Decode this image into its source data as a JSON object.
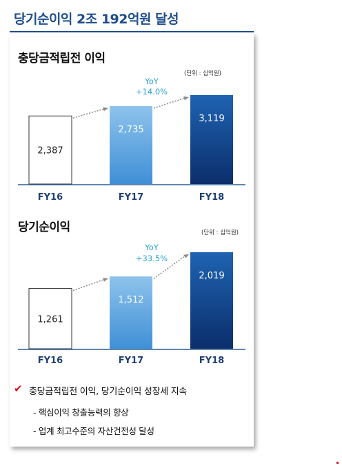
{
  "title": "당기순이익 2조 192억원 달성",
  "chart_data": [
    {
      "type": "bar",
      "title": "충당금적립전 이익",
      "unit": "(단위 : 십억원)",
      "categories": [
        "FY16",
        "FY17",
        "FY18"
      ],
      "values": [
        2387,
        2735,
        3119
      ],
      "labels": [
        "2,387",
        "2,735",
        "3,119"
      ],
      "growth_label": [
        "YoY",
        "+14.0%"
      ],
      "ylim": [
        0,
        3200
      ]
    },
    {
      "type": "bar",
      "title": "당기순이익",
      "unit": "(단위 : 십억원)",
      "categories": [
        "FY16",
        "FY17",
        "FY18"
      ],
      "values": [
        1261,
        1512,
        2019
      ],
      "labels": [
        "1,261",
        "1,512",
        "2,019"
      ],
      "growth_label": [
        "YoY",
        "+33.5%"
      ],
      "ylim": [
        0,
        2100
      ]
    }
  ],
  "colors": {
    "title": "#1f4e8c",
    "bar_fy16_fill": "#ffffff",
    "bar_fy17_top": "#8ec3ec",
    "bar_fy17_bottom": "#3f8fd6",
    "bar_fy18_top": "#1f63b2",
    "bar_fy18_bottom": "#0b2e6b",
    "growth_text": "#2aa3c8",
    "axis": "#2f5f96",
    "tick_label": "#1f3f73"
  },
  "bullets": {
    "main": "충당금적립전 이익, 당기순이익 성장세 지속",
    "check_icon": "✔",
    "sub": [
      "- 핵심이익 창출능력의 향상",
      "- 업계 최고수준의 자산건전성 달성"
    ]
  }
}
